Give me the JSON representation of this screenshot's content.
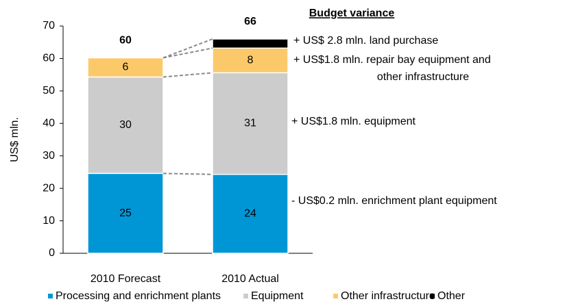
{
  "chart_data": {
    "type": "stacked_bar",
    "categories": [
      "2010 Forecast",
      "2010 Actual"
    ],
    "y_label": "US$ mln.",
    "ylim": [
      0,
      70
    ],
    "yticks": [
      0,
      10,
      20,
      30,
      40,
      50,
      60,
      70
    ],
    "series": [
      {
        "name": "Processing and enrichment plants",
        "color": "#0096d6",
        "values": [
          24.6,
          24.3
        ],
        "value_labels": [
          "25",
          "24"
        ]
      },
      {
        "name": "Equipment",
        "color": "#cccccc",
        "values": [
          29.7,
          31.3
        ],
        "value_labels": [
          "30",
          "31"
        ]
      },
      {
        "name": "Other infrastructure",
        "color": "#fcc96a",
        "values": [
          5.9,
          7.6
        ],
        "value_labels": [
          "6",
          "8"
        ]
      },
      {
        "name": "Other",
        "color": "#000000",
        "values": [
          null,
          2.8
        ],
        "value_labels": [
          null,
          null
        ]
      }
    ],
    "totals": [
      60,
      66
    ],
    "annotation_title": "Budget variance",
    "annotations": [
      [
        "+ US$ 2.8 mln. land purchase"
      ],
      [
        "+ US$1.8 mln. repair bay equipment and",
        "other infrastructure"
      ],
      [
        "+ US$1.8 mln. equipment"
      ],
      [
        "- US$0.2 mln. enrichment plant equipment"
      ]
    ]
  }
}
